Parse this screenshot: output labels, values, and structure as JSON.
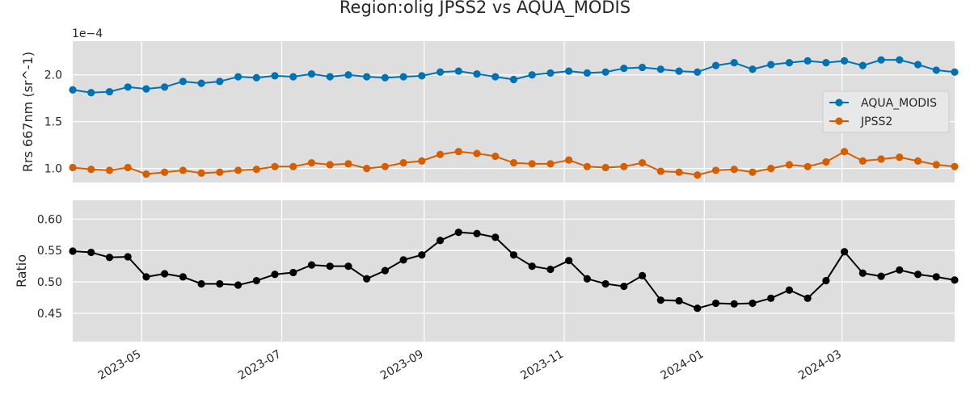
{
  "figure": {
    "title": "Region:olig JPSS2 vs AQUA_MODIS"
  },
  "colors": {
    "panel_bg": "#dedede",
    "grid": "#ffffff",
    "aqua": "#0072b2",
    "jpss2": "#d55e00",
    "ratio": "#000000",
    "text": "#262626"
  },
  "chart_data": [
    {
      "type": "line",
      "title": "",
      "xlabel": "",
      "ylabel": "Rrs 667nm (sr^-1)",
      "offset_label": "1e−4",
      "ylim": [
        0.85,
        2.36
      ],
      "yticks": [
        1.0,
        1.5,
        2.0
      ],
      "ytick_labels": [
        "1.0",
        "1.5",
        "2.0"
      ],
      "grid": true,
      "legend_position": "center-right",
      "x": [
        "2023-04-01",
        "2023-04-09",
        "2023-04-17",
        "2023-04-25",
        "2023-05-03",
        "2023-05-11",
        "2023-05-19",
        "2023-05-27",
        "2023-06-04",
        "2023-06-12",
        "2023-06-20",
        "2023-06-28",
        "2023-07-06",
        "2023-07-14",
        "2023-07-22",
        "2023-07-30",
        "2023-08-07",
        "2023-08-15",
        "2023-08-23",
        "2023-08-31",
        "2023-09-08",
        "2023-09-16",
        "2023-09-24",
        "2023-10-02",
        "2023-10-10",
        "2023-10-18",
        "2023-10-26",
        "2023-11-03",
        "2023-11-11",
        "2023-11-19",
        "2023-11-27",
        "2023-12-05",
        "2023-12-13",
        "2023-12-21",
        "2023-12-29",
        "2024-01-06",
        "2024-01-14",
        "2024-01-22",
        "2024-01-30",
        "2024-02-07",
        "2024-02-15",
        "2024-02-23",
        "2024-03-02",
        "2024-03-10",
        "2024-03-18",
        "2024-03-26",
        "2024-04-03",
        "2024-04-11",
        "2024-04-19"
      ],
      "series": [
        {
          "name": "AQUA_MODIS",
          "values": [
            1.84,
            1.81,
            1.82,
            1.87,
            1.85,
            1.87,
            1.93,
            1.91,
            1.93,
            1.98,
            1.97,
            1.99,
            1.98,
            2.01,
            1.98,
            2.0,
            1.98,
            1.97,
            1.98,
            1.99,
            2.03,
            2.04,
            2.01,
            1.98,
            1.95,
            2.0,
            2.02,
            2.04,
            2.02,
            2.03,
            2.07,
            2.08,
            2.06,
            2.04,
            2.03,
            2.1,
            2.13,
            2.06,
            2.11,
            2.13,
            2.15,
            2.13,
            2.15,
            2.1,
            2.16,
            2.16,
            2.11,
            2.05,
            2.03
          ]
        },
        {
          "name": "JPSS2",
          "values": [
            1.01,
            0.99,
            0.98,
            1.01,
            0.94,
            0.96,
            0.98,
            0.95,
            0.96,
            0.98,
            0.99,
            1.02,
            1.02,
            1.06,
            1.04,
            1.05,
            1.0,
            1.02,
            1.06,
            1.08,
            1.15,
            1.18,
            1.16,
            1.13,
            1.06,
            1.05,
            1.05,
            1.09,
            1.02,
            1.01,
            1.02,
            1.06,
            0.97,
            0.96,
            0.93,
            0.98,
            0.99,
            0.96,
            1.0,
            1.04,
            1.02,
            1.07,
            1.18,
            1.08,
            1.1,
            1.12,
            1.08,
            1.04,
            1.02
          ]
        }
      ]
    },
    {
      "type": "line",
      "title": "",
      "xlabel": "",
      "ylabel": "Ratio",
      "ylim": [
        0.405,
        0.63
      ],
      "yticks": [
        0.45,
        0.5,
        0.55,
        0.6
      ],
      "ytick_labels": [
        "0.45",
        "0.50",
        "0.55",
        "0.60"
      ],
      "grid": true,
      "x_tick_dates": [
        "2023-05-01",
        "2023-07-01",
        "2023-09-01",
        "2023-11-01",
        "2024-01-01",
        "2024-03-01"
      ],
      "x_tick_labels": [
        "2023-05",
        "2023-07",
        "2023-09",
        "2023-11",
        "2024-01",
        "2024-03"
      ],
      "x_range": [
        "2023-04-01",
        "2024-04-19"
      ],
      "series": [
        {
          "values": [
            0.549,
            0.547,
            0.539,
            0.54,
            0.508,
            0.513,
            0.508,
            0.497,
            0.497,
            0.495,
            0.502,
            0.512,
            0.515,
            0.527,
            0.525,
            0.525,
            0.505,
            0.518,
            0.535,
            0.543,
            0.566,
            0.579,
            0.577,
            0.571,
            0.543,
            0.525,
            0.52,
            0.534,
            0.505,
            0.497,
            0.493,
            0.51,
            0.471,
            0.47,
            0.458,
            0.466,
            0.465,
            0.466,
            0.474,
            0.487,
            0.474,
            0.502,
            0.548,
            0.514,
            0.509,
            0.519,
            0.512,
            0.508,
            0.503
          ]
        }
      ]
    }
  ]
}
